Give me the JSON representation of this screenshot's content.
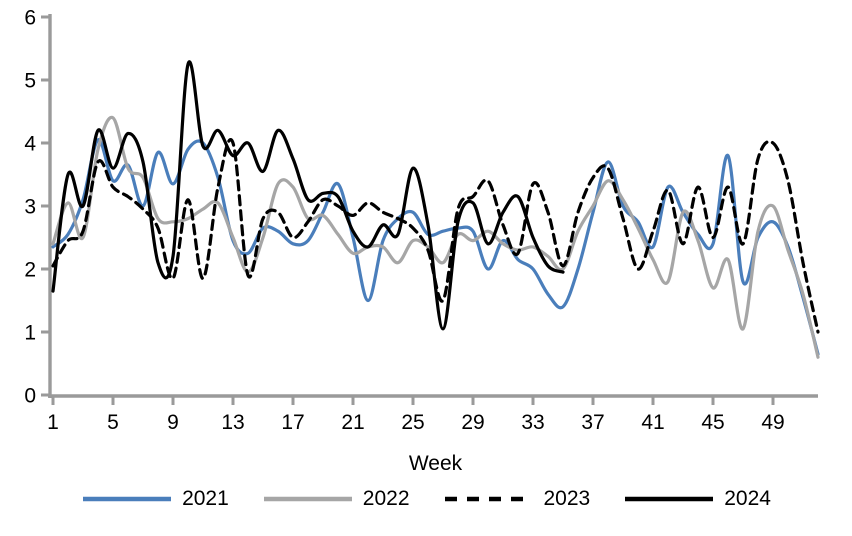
{
  "chart_data": {
    "type": "line",
    "title": "",
    "xlabel": "Week",
    "ylabel": "",
    "grid": false,
    "legend_position": "bottom",
    "axis_color": "#9a9a9a",
    "text_color": "#000000",
    "xlim": [
      1,
      52
    ],
    "ylim": [
      0,
      6
    ],
    "x_ticks": [
      "1",
      "5",
      "9",
      "13",
      "17",
      "21",
      "25",
      "29",
      "33",
      "37",
      "41",
      "45",
      "49"
    ],
    "x_tick_weeks": [
      1,
      5,
      9,
      13,
      17,
      21,
      25,
      29,
      33,
      37,
      41,
      45,
      49
    ],
    "y_ticks": [
      "0",
      "1",
      "2",
      "3",
      "4",
      "5",
      "6"
    ],
    "y_tick_values": [
      0,
      1,
      2,
      3,
      4,
      5,
      6
    ],
    "x_start_week": 1,
    "series": [
      {
        "name": "2021",
        "color": "#4a7ebb",
        "style": "solid",
        "values": [
          2.35,
          2.55,
          3.1,
          4.05,
          3.4,
          3.65,
          3.0,
          3.85,
          3.35,
          3.9,
          4.0,
          3.45,
          2.45,
          2.25,
          2.65,
          2.6,
          2.4,
          2.45,
          2.9,
          3.35,
          2.5,
          1.5,
          2.45,
          2.8,
          2.9,
          2.55,
          2.6,
          2.65,
          2.6,
          2.0,
          2.45,
          2.15,
          2.0,
          1.6,
          1.4,
          2.0,
          2.9,
          3.7,
          3.0,
          2.75,
          2.35,
          3.3,
          2.9,
          2.55,
          2.4,
          3.8,
          1.8,
          2.5,
          2.75,
          2.35,
          1.55,
          0.65
        ]
      },
      {
        "name": "2022",
        "color": "#a6a6a6",
        "style": "solid",
        "values": [
          2.4,
          3.05,
          2.5,
          3.9,
          4.4,
          3.6,
          3.45,
          2.8,
          2.75,
          2.8,
          2.95,
          3.05,
          2.5,
          1.95,
          2.5,
          3.35,
          3.3,
          2.8,
          2.85,
          2.55,
          2.25,
          2.35,
          2.35,
          2.1,
          2.45,
          2.35,
          2.1,
          2.55,
          2.45,
          2.6,
          2.4,
          2.3,
          2.35,
          2.2,
          2.0,
          2.6,
          3.0,
          3.4,
          3.1,
          2.65,
          2.15,
          1.8,
          2.9,
          2.45,
          1.7,
          2.15,
          1.05,
          2.6,
          3.0,
          2.3,
          1.6,
          0.6
        ]
      },
      {
        "name": "2023",
        "color": "#000000",
        "style": "dashed",
        "values": [
          2.05,
          2.45,
          2.6,
          3.7,
          3.3,
          3.15,
          2.95,
          2.65,
          1.85,
          3.1,
          1.85,
          3.3,
          4.0,
          1.9,
          2.8,
          2.9,
          2.5,
          2.75,
          3.1,
          3.0,
          2.85,
          3.05,
          2.9,
          2.8,
          2.65,
          2.3,
          1.5,
          2.95,
          3.15,
          3.4,
          2.7,
          2.25,
          3.35,
          2.9,
          2.05,
          2.9,
          3.45,
          3.6,
          2.8,
          2.0,
          2.6,
          3.25,
          2.4,
          3.3,
          2.5,
          3.3,
          2.4,
          3.75,
          4.0,
          3.4,
          2.1,
          1.0
        ]
      },
      {
        "name": "2024",
        "color": "#000000",
        "style": "solid",
        "values": [
          1.65,
          3.5,
          3.0,
          4.2,
          3.6,
          4.15,
          3.7,
          2.1,
          2.2,
          5.25,
          3.95,
          4.2,
          3.8,
          4.0,
          3.55,
          4.2,
          3.75,
          3.1,
          3.2,
          3.15,
          2.6,
          2.35,
          2.7,
          2.55,
          3.6,
          2.7,
          1.05,
          2.75,
          3.05,
          2.4,
          2.9,
          3.15,
          2.5,
          2.05,
          1.95
        ]
      }
    ]
  }
}
